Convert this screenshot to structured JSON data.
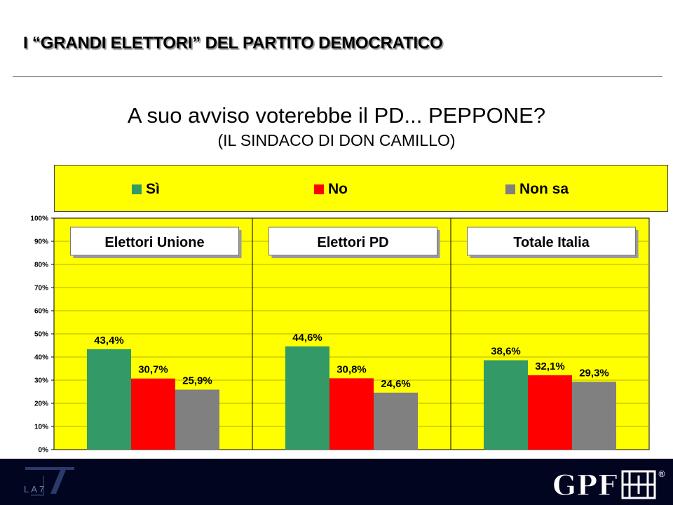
{
  "slide": {
    "title": "I “GRANDI ELETTORI” DEL PARTITO DEMOCRATICO"
  },
  "chart_data": {
    "type": "bar",
    "title": "A suo avviso voterebbe il PD... PEPPONE?",
    "subtitle": "(IL SINDACO DI DON CAMILLO)",
    "categories": [
      "Elettori Unione",
      "Elettori PD",
      "Totale Italia"
    ],
    "series": [
      {
        "name": "Sì",
        "color": "#339966",
        "values": [
          43.4,
          44.6,
          38.6
        ],
        "labels": [
          "43,4%",
          "44,6%",
          "38,6%"
        ]
      },
      {
        "name": "No",
        "color": "#ff0000",
        "values": [
          30.7,
          30.8,
          32.1
        ],
        "labels": [
          "30,7%",
          "30,8%",
          "32,1%"
        ]
      },
      {
        "name": "Non sa",
        "color": "#808080",
        "values": [
          25.9,
          24.6,
          29.3
        ],
        "labels": [
          "25,9%",
          "24,6%",
          "29,3%"
        ]
      }
    ],
    "ylim": [
      0,
      100
    ],
    "yticks": [
      "0%",
      "10%",
      "20%",
      "30%",
      "40%",
      "50%",
      "60%",
      "70%",
      "80%",
      "90%",
      "100%"
    ],
    "grid": true,
    "legend_position": "top",
    "plot_background": "#ffff00"
  },
  "footer": {
    "left_logo": "LA7",
    "right_logo": "GPF",
    "registered_mark": "®"
  }
}
